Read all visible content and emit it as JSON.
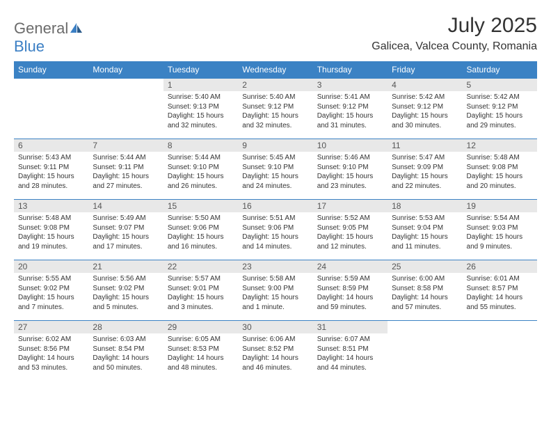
{
  "logo": {
    "text1": "General",
    "text2": "Blue"
  },
  "title": "July 2025",
  "location": "Galicea, Valcea County, Romania",
  "colors": {
    "header_bg": "#3b82c4",
    "header_text": "#ffffff",
    "daynum_bg": "#e8e8e8",
    "border": "#3b82c4",
    "logo_gray": "#6b6b6b",
    "logo_blue": "#3b7fc4"
  },
  "weekdays": [
    "Sunday",
    "Monday",
    "Tuesday",
    "Wednesday",
    "Thursday",
    "Friday",
    "Saturday"
  ],
  "weeks": [
    [
      null,
      null,
      {
        "day": "1",
        "sunrise": "5:40 AM",
        "sunset": "9:13 PM",
        "daylight": "15 hours and 32 minutes."
      },
      {
        "day": "2",
        "sunrise": "5:40 AM",
        "sunset": "9:12 PM",
        "daylight": "15 hours and 32 minutes."
      },
      {
        "day": "3",
        "sunrise": "5:41 AM",
        "sunset": "9:12 PM",
        "daylight": "15 hours and 31 minutes."
      },
      {
        "day": "4",
        "sunrise": "5:42 AM",
        "sunset": "9:12 PM",
        "daylight": "15 hours and 30 minutes."
      },
      {
        "day": "5",
        "sunrise": "5:42 AM",
        "sunset": "9:12 PM",
        "daylight": "15 hours and 29 minutes."
      }
    ],
    [
      {
        "day": "6",
        "sunrise": "5:43 AM",
        "sunset": "9:11 PM",
        "daylight": "15 hours and 28 minutes."
      },
      {
        "day": "7",
        "sunrise": "5:44 AM",
        "sunset": "9:11 PM",
        "daylight": "15 hours and 27 minutes."
      },
      {
        "day": "8",
        "sunrise": "5:44 AM",
        "sunset": "9:10 PM",
        "daylight": "15 hours and 26 minutes."
      },
      {
        "day": "9",
        "sunrise": "5:45 AM",
        "sunset": "9:10 PM",
        "daylight": "15 hours and 24 minutes."
      },
      {
        "day": "10",
        "sunrise": "5:46 AM",
        "sunset": "9:10 PM",
        "daylight": "15 hours and 23 minutes."
      },
      {
        "day": "11",
        "sunrise": "5:47 AM",
        "sunset": "9:09 PM",
        "daylight": "15 hours and 22 minutes."
      },
      {
        "day": "12",
        "sunrise": "5:48 AM",
        "sunset": "9:08 PM",
        "daylight": "15 hours and 20 minutes."
      }
    ],
    [
      {
        "day": "13",
        "sunrise": "5:48 AM",
        "sunset": "9:08 PM",
        "daylight": "15 hours and 19 minutes."
      },
      {
        "day": "14",
        "sunrise": "5:49 AM",
        "sunset": "9:07 PM",
        "daylight": "15 hours and 17 minutes."
      },
      {
        "day": "15",
        "sunrise": "5:50 AM",
        "sunset": "9:06 PM",
        "daylight": "15 hours and 16 minutes."
      },
      {
        "day": "16",
        "sunrise": "5:51 AM",
        "sunset": "9:06 PM",
        "daylight": "15 hours and 14 minutes."
      },
      {
        "day": "17",
        "sunrise": "5:52 AM",
        "sunset": "9:05 PM",
        "daylight": "15 hours and 12 minutes."
      },
      {
        "day": "18",
        "sunrise": "5:53 AM",
        "sunset": "9:04 PM",
        "daylight": "15 hours and 11 minutes."
      },
      {
        "day": "19",
        "sunrise": "5:54 AM",
        "sunset": "9:03 PM",
        "daylight": "15 hours and 9 minutes."
      }
    ],
    [
      {
        "day": "20",
        "sunrise": "5:55 AM",
        "sunset": "9:02 PM",
        "daylight": "15 hours and 7 minutes."
      },
      {
        "day": "21",
        "sunrise": "5:56 AM",
        "sunset": "9:02 PM",
        "daylight": "15 hours and 5 minutes."
      },
      {
        "day": "22",
        "sunrise": "5:57 AM",
        "sunset": "9:01 PM",
        "daylight": "15 hours and 3 minutes."
      },
      {
        "day": "23",
        "sunrise": "5:58 AM",
        "sunset": "9:00 PM",
        "daylight": "15 hours and 1 minute."
      },
      {
        "day": "24",
        "sunrise": "5:59 AM",
        "sunset": "8:59 PM",
        "daylight": "14 hours and 59 minutes."
      },
      {
        "day": "25",
        "sunrise": "6:00 AM",
        "sunset": "8:58 PM",
        "daylight": "14 hours and 57 minutes."
      },
      {
        "day": "26",
        "sunrise": "6:01 AM",
        "sunset": "8:57 PM",
        "daylight": "14 hours and 55 minutes."
      }
    ],
    [
      {
        "day": "27",
        "sunrise": "6:02 AM",
        "sunset": "8:56 PM",
        "daylight": "14 hours and 53 minutes."
      },
      {
        "day": "28",
        "sunrise": "6:03 AM",
        "sunset": "8:54 PM",
        "daylight": "14 hours and 50 minutes."
      },
      {
        "day": "29",
        "sunrise": "6:05 AM",
        "sunset": "8:53 PM",
        "daylight": "14 hours and 48 minutes."
      },
      {
        "day": "30",
        "sunrise": "6:06 AM",
        "sunset": "8:52 PM",
        "daylight": "14 hours and 46 minutes."
      },
      {
        "day": "31",
        "sunrise": "6:07 AM",
        "sunset": "8:51 PM",
        "daylight": "14 hours and 44 minutes."
      },
      null,
      null
    ]
  ],
  "labels": {
    "sunrise": "Sunrise: ",
    "sunset": "Sunset: ",
    "daylight": "Daylight: "
  }
}
